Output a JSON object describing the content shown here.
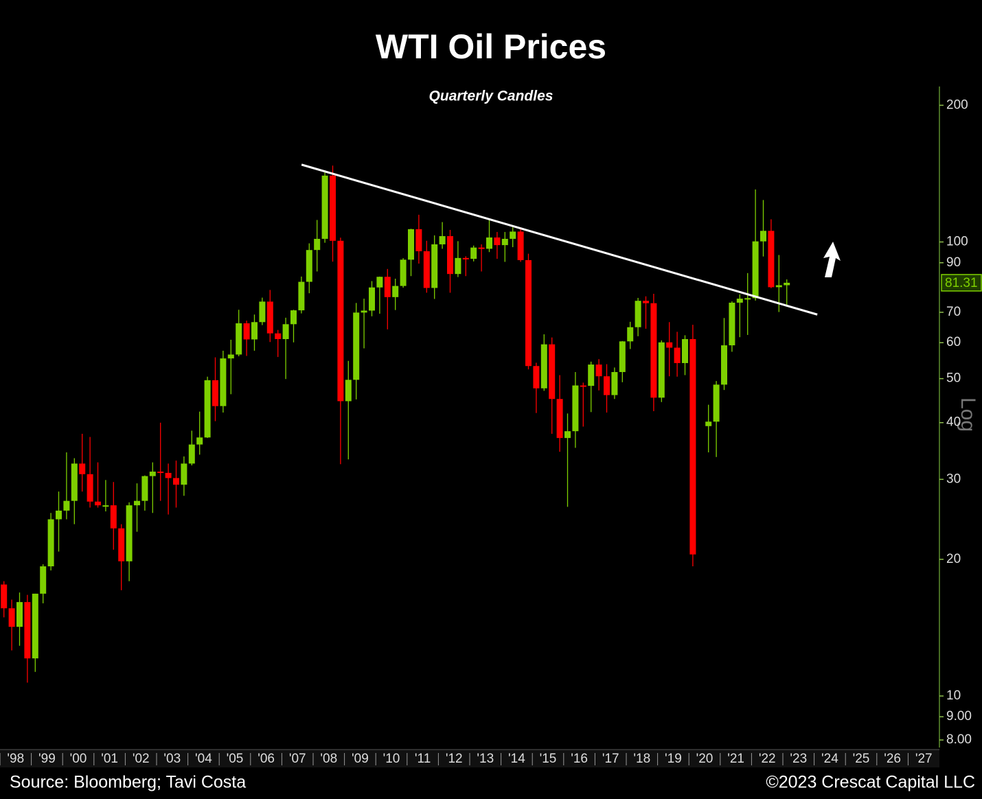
{
  "chart_data": {
    "type": "candlestick",
    "title": "WTI Oil Prices",
    "subtitle": "Quarterly Candles",
    "source": "Source: Bloomberg; Tavi Costa",
    "copyright": "©2023 Crescat Capital LLC",
    "scale_label": "Log",
    "log_scale": true,
    "up_color": "#7ed000",
    "down_color": "#ff0000",
    "x": [
      1998.125,
      1998.375,
      1998.625,
      1998.875,
      1999.125,
      1999.375,
      1999.625,
      1999.875,
      2000.125,
      2000.375,
      2000.625,
      2000.875,
      2001.125,
      2001.375,
      2001.625,
      2001.875,
      2002.125,
      2002.375,
      2002.625,
      2002.875,
      2003.125,
      2003.375,
      2003.625,
      2003.875,
      2004.125,
      2004.375,
      2004.625,
      2004.875,
      2005.125,
      2005.375,
      2005.625,
      2005.875,
      2006.125,
      2006.375,
      2006.625,
      2006.875,
      2007.125,
      2007.375,
      2007.625,
      2007.875,
      2008.125,
      2008.375,
      2008.625,
      2008.875,
      2009.125,
      2009.375,
      2009.625,
      2009.875,
      2010.125,
      2010.375,
      2010.625,
      2010.875,
      2011.125,
      2011.375,
      2011.625,
      2011.875,
      2012.125,
      2012.375,
      2012.625,
      2012.875,
      2013.125,
      2013.375,
      2013.625,
      2013.875,
      2014.125,
      2014.375,
      2014.625,
      2014.875,
      2015.125,
      2015.375,
      2015.625,
      2015.875,
      2016.125,
      2016.375,
      2016.625,
      2016.875,
      2017.125,
      2017.375,
      2017.625,
      2017.875,
      2018.125,
      2018.375,
      2018.625,
      2018.875,
      2019.125,
      2019.375,
      2019.625,
      2019.875,
      2020.125,
      2020.375,
      2020.625,
      2020.875,
      2021.125,
      2021.375,
      2021.625,
      2021.875,
      2022.125,
      2022.375,
      2022.625,
      2022.875,
      2023.125
    ],
    "open": [
      17.6,
      15.6,
      14.2,
      16.1,
      12.1,
      16.8,
      19.3,
      24.5,
      25.6,
      26.9,
      32.5,
      30.8,
      26.8,
      26.3,
      26.3,
      23.4,
      19.8,
      26.3,
      26.9,
      30.5,
      31.2,
      31.0,
      30.2,
      29.2,
      32.5,
      35.8,
      37.1,
      49.6,
      43.5,
      55.4,
      56.5,
      66.2,
      61.0,
      66.6,
      73.9,
      62.9,
      61.1,
      65.9,
      70.7,
      81.7,
      96.0,
      101.6,
      140.0,
      100.6,
      44.6,
      49.7,
      69.9,
      70.6,
      79.4,
      83.8,
      75.6,
      80.0,
      91.4,
      106.7,
      95.4,
      79.2,
      98.8,
      103.0,
      85.0,
      92.2,
      91.8,
      97.2,
      96.6,
      102.3,
      98.4,
      101.6,
      105.4,
      91.2,
      53.3,
      47.6,
      59.5,
      45.1,
      37.0,
      38.3,
      48.3,
      48.2,
      53.7,
      50.6,
      46.0,
      51.7,
      60.4,
      64.9,
      74.2,
      73.3,
      45.4,
      60.1,
      58.5,
      54.1,
      61.1,
      null,
      39.3,
      40.2,
      48.5,
      59.2,
      73.5,
      75.0,
      75.2,
      100.3,
      105.8,
      79.5,
      80.3
    ],
    "high": [
      17.9,
      16.3,
      16.9,
      16.7,
      16.8,
      19.5,
      25.3,
      28.2,
      34.4,
      33.4,
      37.8,
      37.2,
      32.7,
      29.9,
      29.6,
      23.9,
      26.7,
      29.4,
      30.6,
      32.7,
      39.99,
      32.5,
      33.0,
      33.7,
      38.4,
      42.3,
      50.5,
      55.7,
      57.6,
      60.9,
      70.9,
      67.1,
      69.2,
      75.4,
      78.4,
      64.0,
      68.1,
      70.9,
      83.9,
      99.3,
      111.8,
      143.7,
      147.3,
      102.2,
      54.7,
      73.4,
      75.0,
      82.0,
      83.9,
      87.2,
      83.0,
      92.1,
      106.9,
      114.8,
      100.6,
      103.4,
      110.6,
      106.3,
      100.4,
      93.0,
      98.2,
      98.8,
      112.2,
      105.2,
      105.2,
      107.7,
      107.7,
      94.2,
      54.2,
      62.6,
      61.6,
      50.9,
      41.9,
      51.7,
      49.0,
      54.5,
      55.2,
      53.8,
      52.9,
      60.5,
      66.7,
      75.3,
      75.9,
      76.9,
      60.7,
      66.6,
      63.4,
      62.3,
      65.7,
      null,
      43.8,
      49.4,
      68.0,
      74.0,
      76.7,
      85.4,
      130.5,
      123.7,
      112.2,
      93.6,
      82.7
    ],
    "low": [
      14.9,
      12.6,
      12.9,
      10.7,
      11.3,
      16.0,
      18.9,
      20.8,
      24.5,
      23.9,
      28.2,
      26.0,
      26.0,
      25.5,
      21.0,
      17.1,
      17.9,
      23.0,
      25.6,
      25.3,
      26.9,
      25.1,
      26.0,
      27.6,
      32.2,
      34.0,
      37.0,
      40.3,
      42.1,
      46.2,
      56.0,
      56.1,
      57.6,
      65.6,
      60.2,
      55.8,
      49.9,
      60.1,
      69.6,
      77.1,
      86.1,
      99.6,
      90.5,
      32.4,
      33.2,
      45.0,
      58.3,
      68.6,
      69.5,
      64.2,
      70.8,
      79.3,
      84.1,
      89.6,
      77.3,
      74.9,
      96.6,
      77.3,
      83.7,
      84.1,
      90.6,
      86.1,
      95.0,
      91.8,
      90.4,
      97.4,
      90.4,
      52.4,
      42.0,
      47.0,
      37.8,
      34.5,
      26.1,
      35.2,
      39.2,
      42.2,
      47.1,
      42.1,
      45.1,
      49.1,
      58.1,
      62.0,
      64.4,
      42.4,
      44.4,
      50.6,
      50.5,
      50.9,
      19.3,
      null,
      34.4,
      33.6,
      47.2,
      57.3,
      61.7,
      62.4,
      74.3,
      92.9,
      79.1,
      70.1,
      72.5
    ],
    "close": [
      15.6,
      14.2,
      16.1,
      12.1,
      16.8,
      19.3,
      24.5,
      25.6,
      26.9,
      32.5,
      30.8,
      26.8,
      26.3,
      26.3,
      23.4,
      19.8,
      26.3,
      26.9,
      30.5,
      31.2,
      31.0,
      30.2,
      29.2,
      32.5,
      35.8,
      37.1,
      49.6,
      43.5,
      55.4,
      56.5,
      66.2,
      61.0,
      66.6,
      73.9,
      62.9,
      61.1,
      65.9,
      70.7,
      81.7,
      96.0,
      101.6,
      140.0,
      100.6,
      44.6,
      49.7,
      69.9,
      70.6,
      79.4,
      83.8,
      75.6,
      80.0,
      91.4,
      106.7,
      95.4,
      79.2,
      98.8,
      103.0,
      85.0,
      92.2,
      91.8,
      97.2,
      96.6,
      102.3,
      98.4,
      101.6,
      105.4,
      91.2,
      53.3,
      47.6,
      59.5,
      45.1,
      37.0,
      38.3,
      48.3,
      48.2,
      53.7,
      50.6,
      46.0,
      51.7,
      60.4,
      64.9,
      74.2,
      73.3,
      45.4,
      60.1,
      58.5,
      54.1,
      61.1,
      20.5,
      null,
      40.2,
      48.5,
      59.2,
      73.5,
      75.0,
      75.2,
      100.3,
      105.8,
      79.5,
      80.3,
      81.31
    ],
    "trendline": {
      "color": "#ffffff",
      "x": [
        2007.63,
        2024.1
      ],
      "y": [
        148,
        69.2
      ]
    },
    "xlim": [
      1998,
      2028
    ],
    "xticks": [
      {
        "value": 1998,
        "label": "'98"
      },
      {
        "value": 1999,
        "label": "'99"
      },
      {
        "value": 2000,
        "label": "'00"
      },
      {
        "value": 2001,
        "label": "'01"
      },
      {
        "value": 2002,
        "label": "'02"
      },
      {
        "value": 2003,
        "label": "'03"
      },
      {
        "value": 2004,
        "label": "'04"
      },
      {
        "value": 2005,
        "label": "'05"
      },
      {
        "value": 2006,
        "label": "'06"
      },
      {
        "value": 2007,
        "label": "'07"
      },
      {
        "value": 2008,
        "label": "'08"
      },
      {
        "value": 2009,
        "label": "'09"
      },
      {
        "value": 2010,
        "label": "'10"
      },
      {
        "value": 2011,
        "label": "'11"
      },
      {
        "value": 2012,
        "label": "'12"
      },
      {
        "value": 2013,
        "label": "'13"
      },
      {
        "value": 2014,
        "label": "'14"
      },
      {
        "value": 2015,
        "label": "'15"
      },
      {
        "value": 2016,
        "label": "'16"
      },
      {
        "value": 2017,
        "label": "'17"
      },
      {
        "value": 2018,
        "label": "'18"
      },
      {
        "value": 2019,
        "label": "'19"
      },
      {
        "value": 2020,
        "label": "'20"
      },
      {
        "value": 2021,
        "label": "'21"
      },
      {
        "value": 2022,
        "label": "'22"
      },
      {
        "value": 2023,
        "label": "'23"
      },
      {
        "value": 2024,
        "label": "'24"
      },
      {
        "value": 2025,
        "label": "'25"
      },
      {
        "value": 2026,
        "label": "'26"
      },
      {
        "value": 2027,
        "label": "'27"
      }
    ],
    "ylim": [
      7.7,
      220
    ],
    "yticks": [
      200,
      100,
      90,
      70,
      60,
      50,
      40,
      30,
      20,
      10,
      {
        "value": 9,
        "label": "9.00"
      },
      {
        "value": 8,
        "label": "8.00"
      }
    ]
  }
}
